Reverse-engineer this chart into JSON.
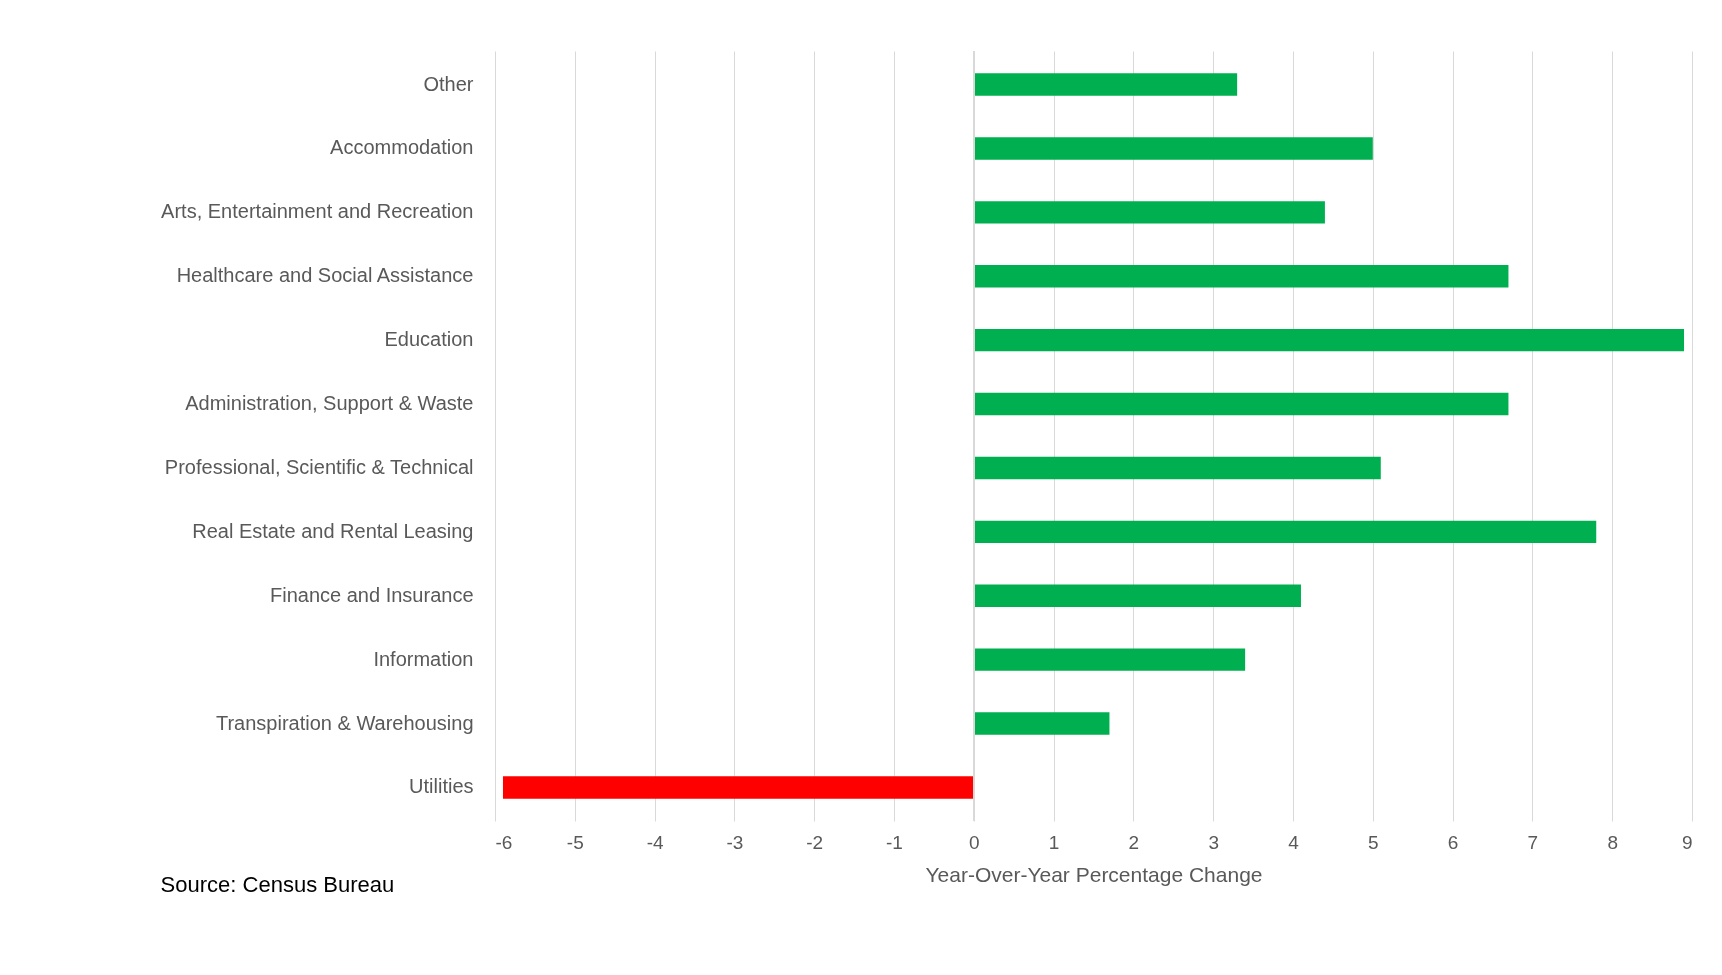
{
  "chart_data": {
    "type": "bar",
    "orientation": "horizontal",
    "categories": [
      "Other",
      "Accommodation",
      "Arts, Entertainment and Recreation",
      "Healthcare and Social Assistance",
      "Education",
      "Administration, Support & Waste",
      "Professional, Scientific & Technical",
      "Real Estate and Rental Leasing",
      "Finance and Insurance",
      "Information",
      "Transpiration & Warehousing",
      "Utilities"
    ],
    "values": [
      3.3,
      5.0,
      4.4,
      6.7,
      8.9,
      6.7,
      5.1,
      7.8,
      4.1,
      3.4,
      1.7,
      -5.9
    ],
    "colors": [
      "#00b050",
      "#00b050",
      "#00b050",
      "#00b050",
      "#00b050",
      "#00b050",
      "#00b050",
      "#00b050",
      "#00b050",
      "#00b050",
      "#00b050",
      "#ff0000"
    ],
    "xlabel": "Year-Over-Year Percentage Change",
    "xlim": [
      -6,
      9
    ],
    "xticks": [
      -6,
      -5,
      -4,
      -3,
      -2,
      -1,
      0,
      1,
      2,
      3,
      4,
      5,
      6,
      7,
      8,
      9
    ],
    "grid": "x",
    "annotations": [
      "Source: Census Bureau"
    ]
  }
}
